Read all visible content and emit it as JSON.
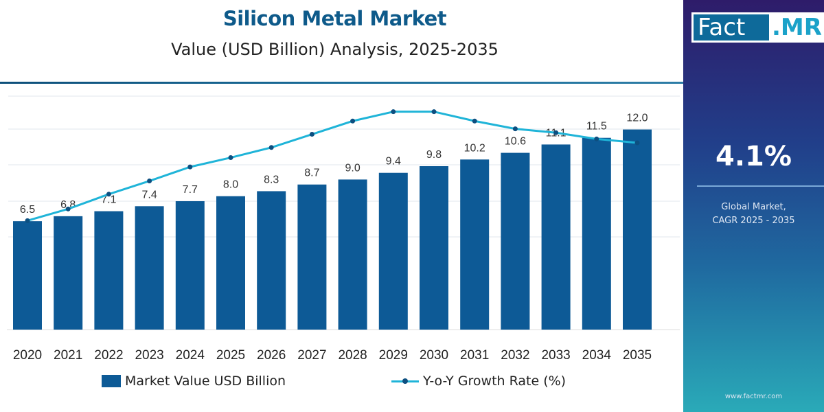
{
  "chart_data": {
    "type": "bar",
    "title": "Silicon Metal Market",
    "subtitle": "Value (USD Billion) Analysis, 2025-2035",
    "categories": [
      "2020",
      "2021",
      "2022",
      "2023",
      "2024",
      "2025",
      "2026",
      "2027",
      "2028",
      "2029",
      "2030",
      "2031",
      "2032",
      "2033",
      "2034",
      "2035"
    ],
    "series": [
      {
        "name": "Market Value USD Billion",
        "type": "bar",
        "color": "#0d5a96",
        "values": [
          6.5,
          6.8,
          7.1,
          7.4,
          7.7,
          8.0,
          8.3,
          8.7,
          9.0,
          9.4,
          9.8,
          10.2,
          10.6,
          11.1,
          11.5,
          12.0
        ],
        "labels": [
          "6.5",
          "6.8",
          "7.1",
          "7.4",
          "7.7",
          "8.0",
          "8.3",
          "8.7",
          "9.0",
          "9.4",
          "9.8",
          "10.2",
          "10.6",
          "11.1",
          "11.5",
          "12.0"
        ]
      },
      {
        "name": "Y-o-Y Growth Rate (%)",
        "type": "line",
        "color": "#1fb4d8",
        "marker_color": "#0d4f80",
        "values": [
          3.6,
          3.75,
          3.94,
          4.11,
          4.29,
          4.41,
          4.54,
          4.71,
          4.88,
          5.0,
          5.0,
          4.88,
          4.78,
          4.73,
          4.65,
          4.6
        ]
      }
    ],
    "ylim": [
      0,
      14
    ],
    "y2lim": [
      2.2,
      5.2
    ],
    "grid": true,
    "legend": "bottom"
  },
  "side_panel": {
    "logo": "Fact.MR",
    "logo_part1": "Fact",
    "logo_part2": ".MR",
    "cagr_value": "4.1%",
    "cagr_label_line1": "Global Market,",
    "cagr_label_line2": "CAGR 2025 - 2035",
    "website": "www.factmr.com"
  }
}
